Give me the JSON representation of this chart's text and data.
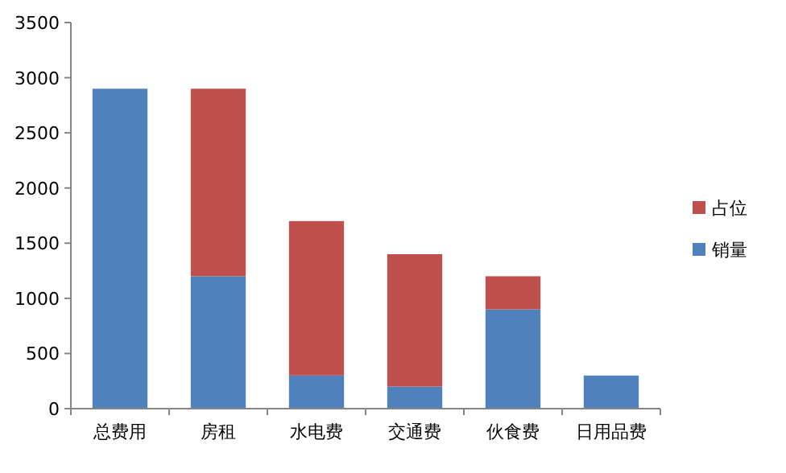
{
  "chart_data": {
    "type": "bar",
    "stacked": true,
    "categories": [
      "总费用",
      "房租",
      "水电费",
      "交通费",
      "伙食费",
      "日用品费"
    ],
    "series": [
      {
        "name": "销量",
        "color": "#4f81bd",
        "values": [
          2900,
          1200,
          300,
          200,
          900,
          300
        ]
      },
      {
        "name": "占位",
        "color": "#c0504d",
        "values": [
          0,
          1700,
          1400,
          1200,
          300,
          0
        ]
      }
    ],
    "ylim": [
      0,
      3500
    ],
    "yticks": [
      0,
      500,
      1000,
      1500,
      2000,
      2500,
      3000,
      3500
    ],
    "grid": false,
    "legend": "right"
  }
}
